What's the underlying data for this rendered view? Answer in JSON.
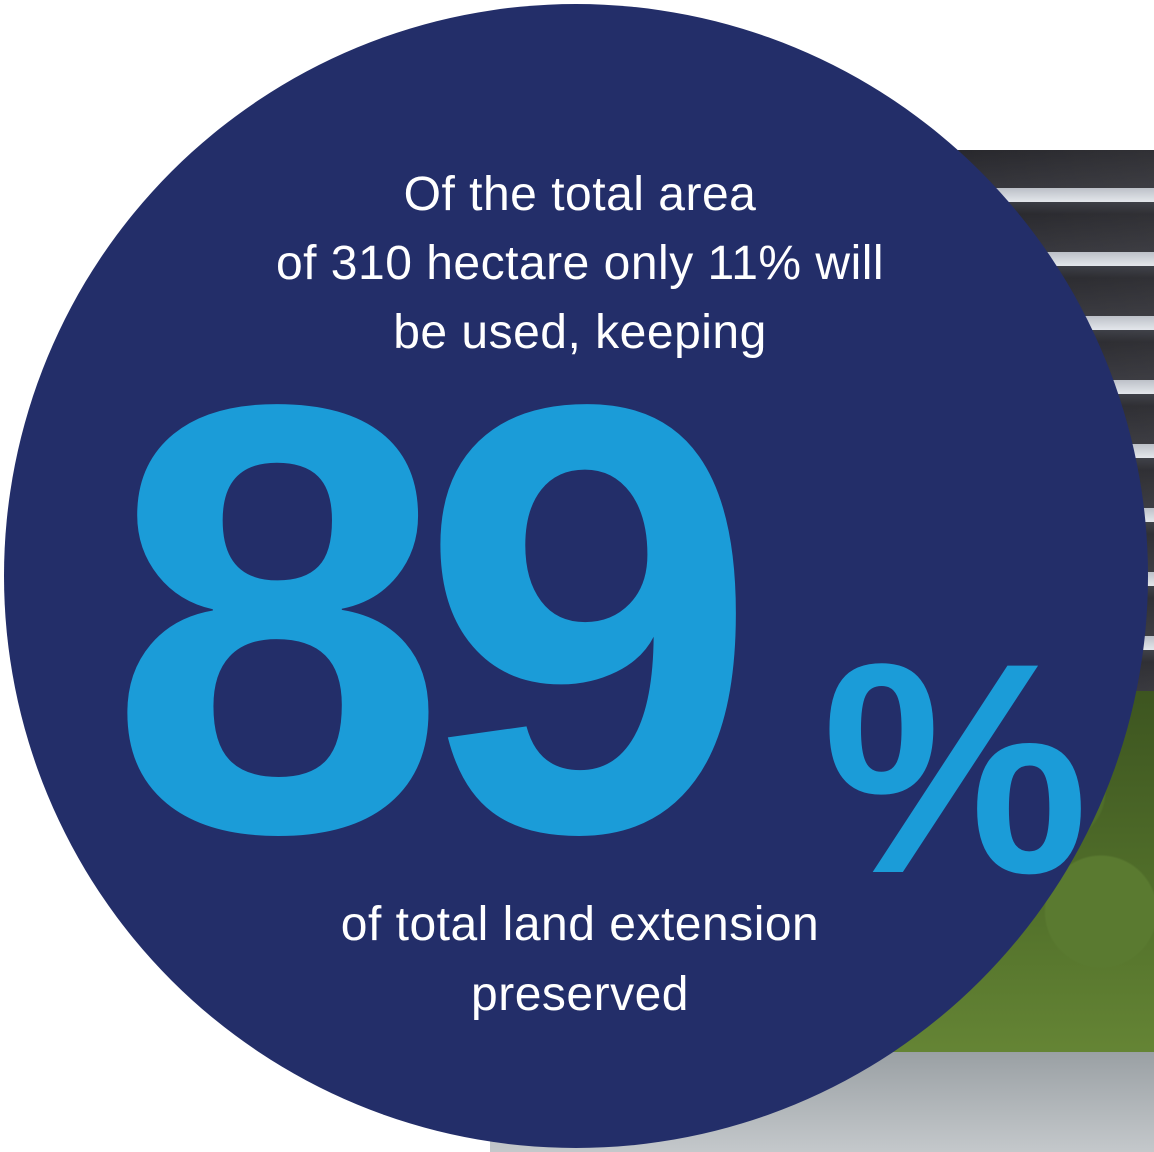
{
  "infographic": {
    "intro_text": "Of the total area\nof 310 hectare only 11% will\nbe used, keeping",
    "stat_value": "89",
    "stat_unit": "%",
    "outro_text": "of total land extension\npreserved"
  },
  "colors": {
    "circle": "#232e69",
    "accent": "#1b9cd8",
    "text": "#ffffff"
  }
}
